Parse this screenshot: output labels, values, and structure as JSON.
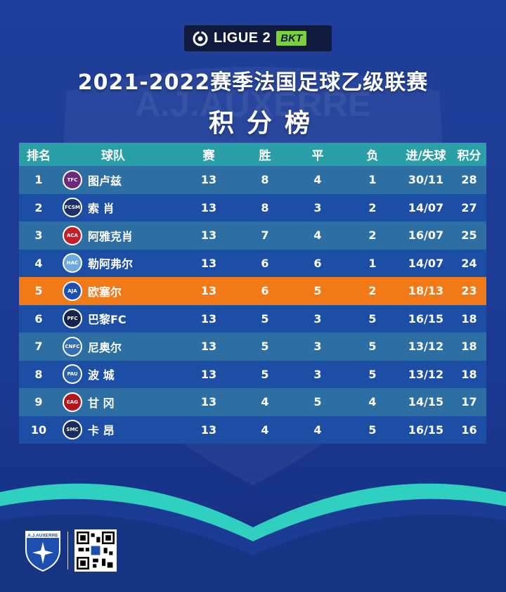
{
  "league": {
    "name": "LIGUE 2",
    "sponsor": "BKT"
  },
  "title": "2021-2022赛季法国足球乙级联赛",
  "subtitle": "积分榜",
  "columns": [
    "排名",
    "球队",
    "赛",
    "胜",
    "平",
    "负",
    "进/失球",
    "积分"
  ],
  "rows": [
    {
      "rank": "1",
      "team": "图卢兹",
      "p": "13",
      "w": "8",
      "d": "4",
      "l": "1",
      "gd": "30/11",
      "pts": "28",
      "badge": "TFC",
      "color": "#6b2a7a"
    },
    {
      "rank": "2",
      "team": "索 肖",
      "p": "13",
      "w": "8",
      "d": "3",
      "l": "2",
      "gd": "14/07",
      "pts": "27",
      "badge": "FCSM",
      "color": "#1e2f6e"
    },
    {
      "rank": "3",
      "team": "阿雅克肖",
      "p": "13",
      "w": "7",
      "d": "4",
      "l": "2",
      "gd": "16/07",
      "pts": "25",
      "badge": "ACA",
      "color": "#c41e2a"
    },
    {
      "rank": "4",
      "team": "勒阿弗尔",
      "p": "13",
      "w": "6",
      "d": "6",
      "l": "1",
      "gd": "14/07",
      "pts": "24",
      "badge": "HAC",
      "color": "#6fa8dc"
    },
    {
      "rank": "5",
      "team": "欧塞尔",
      "p": "13",
      "w": "6",
      "d": "5",
      "l": "2",
      "gd": "18/13",
      "pts": "23",
      "badge": "AJA",
      "color": "#1c4fb0"
    },
    {
      "rank": "6",
      "team": "巴黎FC",
      "p": "13",
      "w": "5",
      "d": "3",
      "l": "5",
      "gd": "16/15",
      "pts": "18",
      "badge": "PFC",
      "color": "#15244f"
    },
    {
      "rank": "7",
      "team": "尼奥尔",
      "p": "13",
      "w": "5",
      "d": "3",
      "l": "5",
      "gd": "13/12",
      "pts": "18",
      "badge": "CNFC",
      "color": "#2f6fb8"
    },
    {
      "rank": "8",
      "team": "波 城",
      "p": "13",
      "w": "5",
      "d": "3",
      "l": "5",
      "gd": "13/12",
      "pts": "18",
      "badge": "PAU",
      "color": "#2a5fb0"
    },
    {
      "rank": "9",
      "team": "甘 冈",
      "p": "13",
      "w": "4",
      "d": "5",
      "l": "4",
      "gd": "14/15",
      "pts": "17",
      "badge": "EAG",
      "color": "#b3151f"
    },
    {
      "rank": "10",
      "team": "卡 昂",
      "p": "13",
      "w": "4",
      "d": "4",
      "l": "5",
      "gd": "16/15",
      "pts": "16",
      "badge": "SMC",
      "color": "#1b2c5e"
    }
  ],
  "highlight_rank": "5",
  "footer": {
    "club_logo_text": "A.J.AUXERRE"
  },
  "colors": {
    "header_bg": "#2a9fa8",
    "row_odd": "#2d6fa2",
    "row_even": "#1d4ea6",
    "highlight": "#f07a17",
    "wave": "#2fd0c0"
  }
}
